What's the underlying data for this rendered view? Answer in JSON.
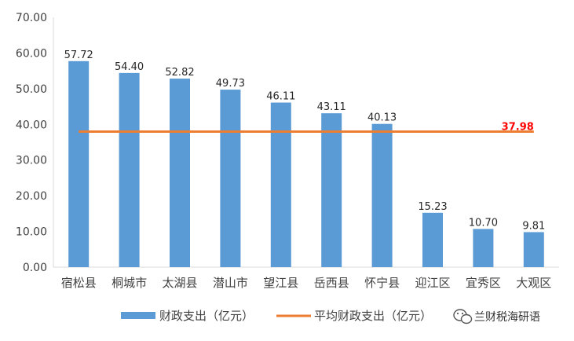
{
  "chart_data": {
    "type": "bar",
    "categories": [
      "宿松县",
      "桐城市",
      "太湖县",
      "潜山市",
      "望江县",
      "岳西县",
      "怀宁县",
      "迎江区",
      "宜秀区",
      "大观区"
    ],
    "series": [
      {
        "name": "财政支出（亿元）",
        "type": "bar",
        "color": "#5b9bd5",
        "values": [
          57.72,
          54.4,
          52.82,
          49.73,
          46.11,
          43.11,
          40.13,
          15.23,
          10.7,
          9.81
        ],
        "labels": [
          "57.72",
          "54.40",
          "52.82",
          "49.73",
          "46.11",
          "43.11",
          "40.13",
          "15.23",
          "10.70",
          "9.81"
        ]
      },
      {
        "name": "平均财政支出（亿元）",
        "type": "line",
        "color": "#ed7d31",
        "value": 37.98,
        "label": "37.98",
        "label_color": "#ff0000"
      }
    ],
    "ylim": [
      0,
      70
    ],
    "yticks": [
      "0.00",
      "10.00",
      "20.00",
      "30.00",
      "40.00",
      "50.00",
      "60.00",
      "70.00"
    ],
    "ytick_values": [
      0,
      10,
      20,
      30,
      40,
      50,
      60,
      70
    ],
    "grid": false,
    "legend_position": "bottom"
  },
  "watermark": {
    "text": "兰财税海研语",
    "icon": "wechat-icon"
  }
}
